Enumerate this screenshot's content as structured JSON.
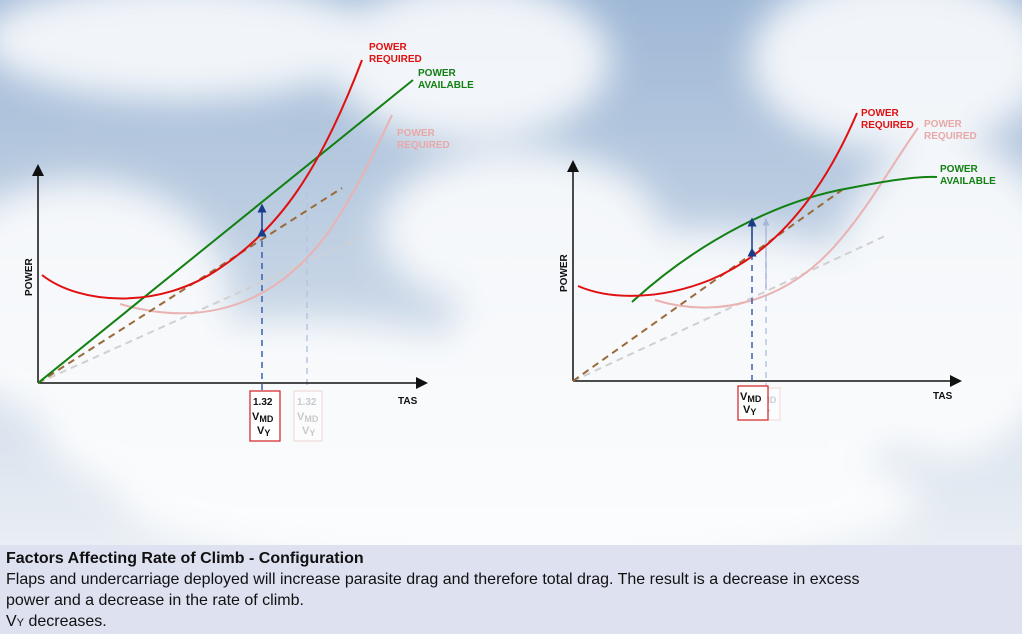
{
  "left_diagram": {
    "y_axis": "POWER",
    "x_axis": "TAS",
    "labels": {
      "power_required": [
        "POWER",
        "REQUIRED"
      ],
      "power_available": [
        "POWER",
        "AVAILABLE"
      ],
      "power_required_ghost": [
        "POWER",
        "REQUIRED"
      ]
    },
    "marker_box": {
      "speed": "1.32",
      "vmd": "V",
      "vmd_sub": "MD",
      "vy": "V",
      "vy_sub": "Y"
    },
    "ghost_box": {
      "speed": "1.32",
      "vmd": "V",
      "vmd_sub": "MD",
      "vy": "V",
      "vy_sub": "Y"
    }
  },
  "right_diagram": {
    "y_axis": "POWER",
    "x_axis": "TAS",
    "labels": {
      "power_required": [
        "POWER",
        "REQUIRED"
      ],
      "power_required_ghost": [
        "POWER",
        "REQUIRED"
      ],
      "power_available": [
        "POWER",
        "AVAILABLE"
      ]
    },
    "marker_box": {
      "vmd": "V",
      "vmd_sub": "MD",
      "vy": "V",
      "vy_sub": "Y"
    },
    "ghost_box": {
      "vmd": "V",
      "vmd_sub": "MD",
      "vy": "V",
      "vy_sub": "Y"
    }
  },
  "colors": {
    "power_required": "#e01010",
    "power_available": "#128012",
    "ghost": "#e8a8a8",
    "tangent": "#9a6a3a",
    "dashed_blue": "#3a5fb0",
    "arrow": "#1a3a8a"
  },
  "caption": {
    "title": "Factors Affecting Rate of Climb - Configuration",
    "line1": "Flaps and undercarriage deployed will increase parasite drag and therefore total drag. The result is a decrease in excess",
    "line2": "power and a decrease in the rate of climb.",
    "line3_main": "V",
    "line3_sub": "Y",
    "line3_rest": " decreases."
  }
}
